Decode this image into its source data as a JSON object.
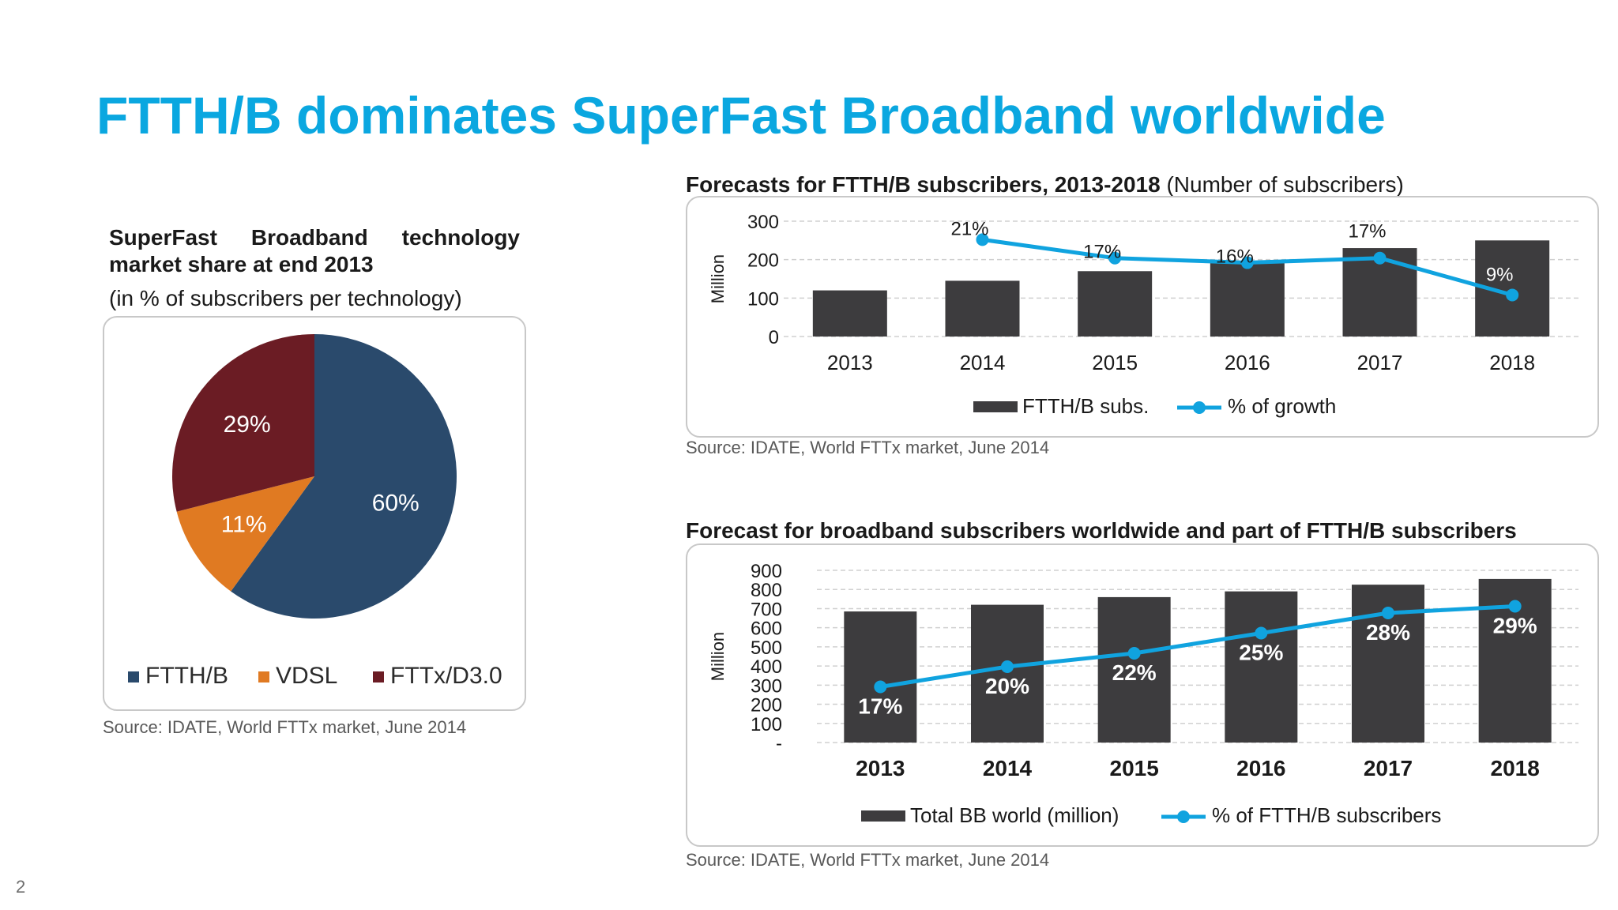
{
  "slide": {
    "title": "FTTH/B dominates SuperFast Broadband worldwide",
    "page_number": "2"
  },
  "colors": {
    "title": "#0aa7e0",
    "bar": "#3d3c3e",
    "line": "#10a3df",
    "ftthb": "#2a4a6c",
    "vdsl": "#e07a22",
    "fttx": "#6b1c24"
  },
  "pie_panel": {
    "heading_line1": "SuperFast Broadband technology",
    "heading_line2": "market share at end 2013",
    "subheading": "(in % of subscribers per technology)",
    "source": "Source: IDATE, World FTTx market, June 2014"
  },
  "chart1_panel": {
    "heading_bold": "Forecasts for FTTH/B subscribers, 2013-2018",
    "heading_normal": "(Number of subscribers)",
    "source": "Source: IDATE, World FTTx market, June 2014"
  },
  "chart2_panel": {
    "heading_bold": "Forecast for broadband subscribers worldwide and part of FTTH/B subscribers",
    "source": "Source: IDATE, World FTTx market, June 2014"
  },
  "chart_data": [
    {
      "type": "pie",
      "title": "",
      "categories": [
        "FTTH/B",
        "VDSL",
        "FTTx/D3.0"
      ],
      "values": [
        60,
        11,
        29
      ],
      "labels": [
        "60%",
        "11%",
        "29%"
      ],
      "legend_position": "bottom"
    },
    {
      "type": "bar",
      "title": "",
      "categories": [
        "2013",
        "2014",
        "2015",
        "2016",
        "2017",
        "2018"
      ],
      "series": [
        {
          "name": "FTTH/B subs.",
          "type": "bar",
          "values": [
            120,
            145,
            170,
            195,
            230,
            250
          ]
        },
        {
          "name": "% of growth",
          "type": "line",
          "values": [
            null,
            21,
            17,
            16,
            17,
            9
          ],
          "labels": [
            "",
            "21%",
            "17%",
            "16%",
            "17%",
            "9%"
          ]
        }
      ],
      "ylabel": "Million",
      "ylim": [
        0,
        300
      ],
      "yticks": [
        "300",
        "200",
        "100",
        "0"
      ],
      "grid": true,
      "legend_position": "bottom"
    },
    {
      "type": "bar",
      "title": "",
      "categories": [
        "2013",
        "2014",
        "2015",
        "2016",
        "2017",
        "2018"
      ],
      "series": [
        {
          "name": "Total BB world (million)",
          "type": "bar",
          "values": [
            685,
            720,
            760,
            790,
            825,
            855
          ]
        },
        {
          "name": "% of FTTH/B subscribers",
          "type": "line",
          "values": [
            17,
            20,
            22,
            25,
            28,
            29
          ],
          "labels": [
            "17%",
            "20%",
            "22%",
            "25%",
            "28%",
            "29%"
          ]
        }
      ],
      "ylabel": "Million",
      "ylim": [
        0,
        900
      ],
      "yticks": [
        "900",
        "800",
        "700",
        "600",
        "500",
        "400",
        "300",
        "200",
        "100",
        "-"
      ],
      "grid": true,
      "legend_position": "bottom"
    }
  ]
}
